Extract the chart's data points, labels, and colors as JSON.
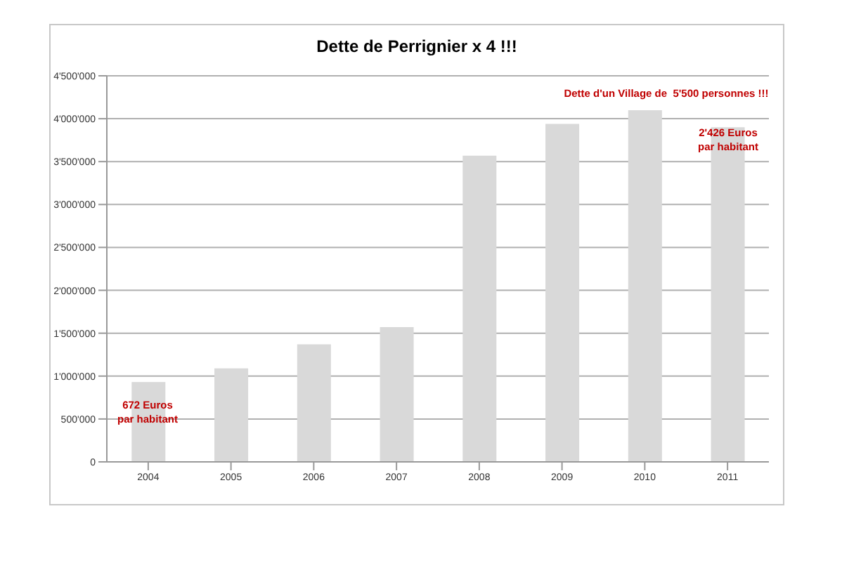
{
  "chart_data": {
    "type": "bar",
    "title": "Dette de Perrignier x 4 !!!",
    "categories": [
      "2004",
      "2005",
      "2006",
      "2007",
      "2008",
      "2009",
      "2010",
      "2011"
    ],
    "values": [
      930000,
      1090000,
      1370000,
      1570000,
      3570000,
      3940000,
      4100000,
      3900000
    ],
    "color": "#d9d9d9",
    "ylim": [
      0,
      4500000
    ],
    "yticks": [
      0,
      {
        "value": 500000,
        "label": "500'000"
      },
      {
        "value": 1000000,
        "label": "1'000'000"
      },
      {
        "value": 1500000,
        "label": "1'500'000"
      },
      {
        "value": 2000000,
        "label": "2'000'000"
      },
      {
        "value": 2500000,
        "label": "2'500'000"
      },
      {
        "value": 3000000,
        "label": "3'000'000"
      },
      {
        "value": 3500000,
        "label": "3'500'000"
      },
      {
        "value": 4000000,
        "label": "4'000'000"
      },
      {
        "value": 4500000,
        "label": "4'500'000"
      }
    ],
    "grid": "y",
    "annotations": [
      "672 Euros\npar habitant",
      "Dette d'un Village de  5'500 personnes !!!",
      "2'426 Euros\npar habitant"
    ]
  }
}
